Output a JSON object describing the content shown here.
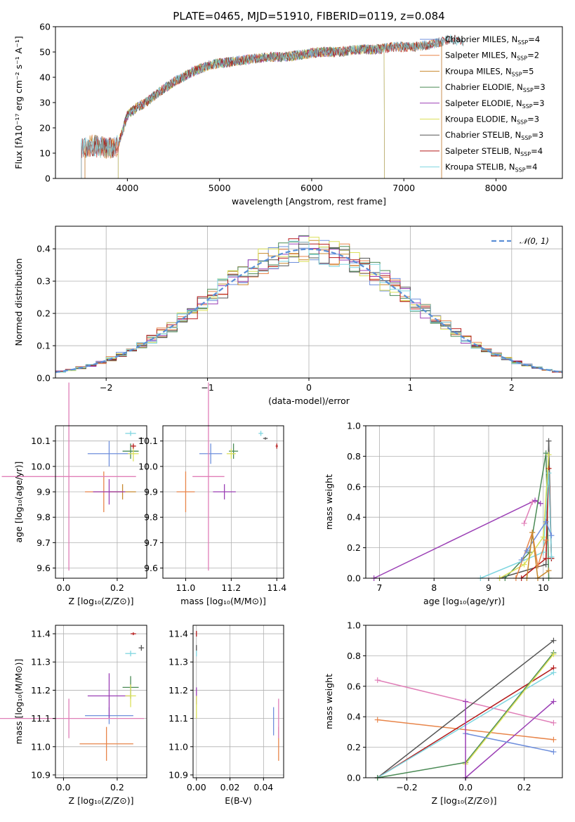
{
  "chart_data": [
    {
      "id": "spectrum",
      "type": "line",
      "title": "PLATE=0465, MJD=51910, FIBERID=0119, z=0.084",
      "xlabel": "wavelength [Angstrom, rest frame]",
      "ylabel": "Flux [fλ10⁻¹⁷ erg cm⁻² s⁻¹ A⁻¹]",
      "xlim": [
        3220,
        8720
      ],
      "ylim": [
        0,
        60
      ],
      "xticks": [
        4000,
        5000,
        6000,
        7000,
        8000
      ],
      "yticks": [
        0,
        10,
        20,
        30,
        40,
        50,
        60
      ],
      "grid": false,
      "legend_position": "right",
      "legend": [
        {
          "name": "Chabrier MILES",
          "nssp": "4",
          "color": "#6f8fdc"
        },
        {
          "name": "Salpeter MILES",
          "nssp": "2",
          "color": "#e8854a"
        },
        {
          "name": "Kroupa MILES",
          "nssp": "5",
          "color": "#c8892f"
        },
        {
          "name": "Chabrier ELODIE",
          "nssp": "3",
          "color": "#4a8a55"
        },
        {
          "name": "Salpeter ELODIE",
          "nssp": "3",
          "color": "#9b3fb5"
        },
        {
          "name": "Kroupa ELODIE",
          "nssp": "3",
          "color": "#dbe05a"
        },
        {
          "name": "Chabrier STELIB",
          "nssp": "3",
          "color": "#555555"
        },
        {
          "name": "Salpeter STELIB",
          "nssp": "4",
          "color": "#b51a1a"
        },
        {
          "name": "Kroupa STELIB",
          "nssp": "4",
          "color": "#7fd6e0"
        }
      ],
      "continuum": {
        "x": [
          3500,
          3600,
          3800,
          3900,
          4000,
          4100,
          4200,
          4300,
          4500,
          4700,
          4900,
          5100,
          5300,
          5500,
          5700,
          5900,
          6100,
          6300,
          6500,
          6700,
          6900,
          7100,
          7300,
          7500,
          7700
        ],
        "y": [
          12,
          13,
          12,
          13,
          25,
          28,
          30,
          33,
          38,
          42,
          45,
          46,
          47,
          48,
          48,
          49,
          50,
          50,
          51,
          51,
          52,
          52,
          53,
          55,
          54
        ]
      },
      "model_ranges": [
        {
          "series": "Chabrier MILES",
          "x": [
            3540,
            7410
          ]
        },
        {
          "series": "Salpeter MILES",
          "x": [
            3540,
            7410
          ]
        },
        {
          "series": "Kroupa MILES",
          "x": [
            3540,
            7410
          ]
        },
        {
          "series": "Chabrier ELODIE",
          "x": [
            3900,
            6790
          ]
        },
        {
          "series": "Salpeter ELODIE",
          "x": [
            3900,
            6790
          ]
        },
        {
          "series": "Kroupa ELODIE",
          "x": [
            3900,
            6790
          ]
        },
        {
          "series": "Chabrier STELIB",
          "x": [
            3500,
            8600
          ]
        },
        {
          "series": "Salpeter STELIB",
          "x": [
            3500,
            8600
          ]
        },
        {
          "series": "Kroupa STELIB",
          "x": [
            3500,
            8600
          ]
        }
      ]
    },
    {
      "id": "residuals",
      "type": "line",
      "xlabel": "(data-model)/error",
      "ylabel": "Normed distribution",
      "xlim": [
        -2.5,
        2.5
      ],
      "ylim": [
        0,
        0.47
      ],
      "xticks": [
        -2,
        -1,
        0,
        1,
        2
      ],
      "xticklabels": [
        "−2",
        "−1",
        "0",
        "1",
        "2"
      ],
      "yticks": [
        0,
        0.1,
        0.2,
        0.3,
        0.4
      ],
      "yticklabels": [
        "0.0",
        "0.1",
        "0.2",
        "0.3",
        "0.4"
      ],
      "grid": true,
      "legend_position": "top-right",
      "legend": [
        {
          "name": "𝒩(0, 1)",
          "style": "dashed",
          "color": "#5b8fd6"
        }
      ],
      "histogram": {
        "bin_width": 0.1,
        "x_range": [
          -2.5,
          2.5
        ],
        "count": 9
      }
    },
    {
      "id": "age_vs_Z",
      "type": "scatter",
      "xlabel": "Z [log₁₀(Z/Z⊙)]",
      "ylabel": "age  [log₁₀(age/yr)]",
      "xlim": [
        -0.03,
        0.31
      ],
      "ylim": [
        9.56,
        10.16
      ],
      "xticks": [
        0.0,
        0.2
      ],
      "xticklabels": [
        "0.0",
        "0.2"
      ],
      "yticks": [
        9.6,
        9.7,
        9.8,
        9.9,
        10.0,
        10.1
      ],
      "yticklabels": [
        "9.6",
        "9.7",
        "9.8",
        "9.9",
        "10.0",
        "10.1"
      ],
      "grid": true,
      "points": [
        {
          "series": "Chabrier MILES",
          "x": 0.17,
          "y": 10.05,
          "xerr": 0.08,
          "yerr": 0.05
        },
        {
          "series": "Salpeter MILES",
          "x": 0.15,
          "y": 9.9,
          "xerr": 0.07,
          "yerr": 0.08
        },
        {
          "series": "Kroupa MILES",
          "x": 0.22,
          "y": 9.9,
          "xerr": 0.05,
          "yerr": 0.03
        },
        {
          "series": "Chabrier ELODIE",
          "x": 0.25,
          "y": 10.06,
          "xerr": 0.03,
          "yerr": 0.03
        },
        {
          "series": "Salpeter ELODIE",
          "x": 0.17,
          "y": 9.9,
          "xerr": 0.06,
          "yerr": 0.05
        },
        {
          "series": "Kroupa ELODIE",
          "x": 0.26,
          "y": 10.05,
          "xerr": 0.02,
          "yerr": 0.03
        },
        {
          "series": "Chabrier STELIB",
          "x": 0.29,
          "y": 10.11,
          "xerr": 0.01,
          "yerr": 0.005
        },
        {
          "series": "Salpeter STELIB",
          "x": 0.26,
          "y": 10.08,
          "xerr": 0.01,
          "yerr": 0.01
        },
        {
          "series": "Kroupa STELIB",
          "x": 0.25,
          "y": 10.13,
          "xerr": 0.02,
          "yerr": 0.01
        },
        {
          "series": "pink",
          "x": 0.02,
          "y": 9.96,
          "xerr": 0.25,
          "yerr": 0.37
        }
      ]
    },
    {
      "id": "age_vs_mass",
      "type": "scatter",
      "xlabel": "mass [log₁₀(M/M⊙)]",
      "xlim": [
        10.9,
        11.43
      ],
      "ylim": [
        9.56,
        10.16
      ],
      "xticks": [
        11.0,
        11.2,
        11.4
      ],
      "xticklabels": [
        "11.0",
        "11.2",
        "11.4"
      ],
      "yticks": [
        9.6,
        9.7,
        9.8,
        9.9,
        10.0,
        10.1
      ],
      "yticklabels": [
        "9.6",
        "9.7",
        "9.8",
        "9.9",
        "10.0",
        "10.1"
      ],
      "grid": true,
      "points": [
        {
          "series": "Chabrier MILES",
          "x": 11.11,
          "y": 10.05,
          "xerr": 0.05,
          "yerr": 0.04
        },
        {
          "series": "Salpeter MILES",
          "x": 11.0,
          "y": 9.9,
          "xerr": 0.04,
          "yerr": 0.08
        },
        {
          "series": "Chabrier ELODIE",
          "x": 11.21,
          "y": 10.06,
          "xerr": 0.02,
          "yerr": 0.03
        },
        {
          "series": "Salpeter ELODIE",
          "x": 11.17,
          "y": 9.9,
          "xerr": 0.05,
          "yerr": 0.03
        },
        {
          "series": "Kroupa ELODIE",
          "x": 11.2,
          "y": 10.05,
          "xerr": 0.02,
          "yerr": 0.02
        },
        {
          "series": "Chabrier STELIB",
          "x": 11.35,
          "y": 10.11,
          "xerr": 0.01,
          "yerr": 0.005
        },
        {
          "series": "Salpeter STELIB",
          "x": 11.4,
          "y": 10.08,
          "xerr": 0.005,
          "yerr": 0.01
        },
        {
          "series": "Kroupa STELIB",
          "x": 11.33,
          "y": 10.13,
          "xerr": 0.01,
          "yerr": 0.01
        },
        {
          "series": "pink",
          "x": 11.1,
          "y": 9.96,
          "xerr": 0.07,
          "yerr": 0.37
        }
      ]
    },
    {
      "id": "mass_weight_vs_age",
      "type": "line",
      "xlabel": "age  [log₁₀(age/yr)]",
      "ylabel": "mass weight",
      "xlim": [
        6.75,
        10.35
      ],
      "ylim": [
        0,
        1.0
      ],
      "xticks": [
        7,
        8,
        9,
        10
      ],
      "yticks": [
        0,
        0.2,
        0.4,
        0.6,
        0.8,
        1.0
      ],
      "yticklabels": [
        "0.0",
        "0.2",
        "0.4",
        "0.6",
        "0.8",
        "1.0"
      ],
      "grid": true,
      "series": [
        {
          "name": "Salpeter ELODIE",
          "x": [
            6.9,
            9.85,
            9.95
          ],
          "y": [
            0.0,
            0.51,
            0.49
          ]
        },
        {
          "name": "Chabrier STELIB",
          "x": [
            9.2,
            10.05,
            10.1,
            10.15
          ],
          "y": [
            0.0,
            0.09,
            0.9,
            0.13
          ]
        },
        {
          "name": "Chabrier ELODIE",
          "x": [
            9.3,
            9.75,
            10.05,
            10.1
          ],
          "y": [
            0.0,
            0.17,
            0.82,
            0.0
          ]
        },
        {
          "name": "Salpeter STELIB",
          "x": [
            9.6,
            10.05,
            10.1,
            10.15
          ],
          "y": [
            0.0,
            0.13,
            0.72,
            0.13
          ]
        },
        {
          "name": "Kroupa STELIB",
          "x": [
            8.85,
            10.0,
            10.1,
            10.15
          ],
          "y": [
            0.0,
            0.17,
            0.69,
            0.14
          ]
        },
        {
          "name": "Kroupa ELODIE",
          "x": [
            9.2,
            9.65,
            10.0,
            10.1
          ],
          "y": [
            0.0,
            0.09,
            0.27,
            0.81
          ]
        },
        {
          "name": "Salpeter MILES",
          "x": [
            9.5,
            9.8,
            9.9,
            10.05
          ],
          "y": [
            0.0,
            0.3,
            0.08,
            0.25
          ]
        },
        {
          "name": "Chabrier MILES",
          "x": [
            9.6,
            9.7,
            10.05,
            10.15
          ],
          "y": [
            0.12,
            0.18,
            0.37,
            0.28
          ]
        },
        {
          "name": "Kroupa MILES",
          "x": [
            9.7,
            9.8,
            9.9,
            10.1
          ],
          "y": [
            0.0,
            0.3,
            0.0,
            0.05
          ]
        },
        {
          "name": "pink",
          "x": [
            9.65,
            9.8
          ],
          "y": [
            0.36,
            0.5
          ]
        }
      ]
    },
    {
      "id": "mass_vs_Z",
      "type": "scatter",
      "xlabel": "Z [log₁₀(Z/Z⊙)]",
      "ylabel": "mass [log₁₀(M/M⊙)]",
      "xlim": [
        -0.03,
        0.31
      ],
      "ylim": [
        10.89,
        11.43
      ],
      "xticks": [
        0.0,
        0.2
      ],
      "xticklabels": [
        "0.0",
        "0.2"
      ],
      "yticks": [
        10.9,
        11.0,
        11.1,
        11.2,
        11.3,
        11.4
      ],
      "yticklabels": [
        "10.9",
        "11.0",
        "11.1",
        "11.2",
        "11.3",
        "11.4"
      ],
      "grid": true,
      "points": [
        {
          "series": "Chabrier MILES",
          "x": 0.17,
          "y": 11.11,
          "xerr": 0.09,
          "yerr": 0.03
        },
        {
          "series": "Salpeter MILES",
          "x": 0.16,
          "y": 11.01,
          "xerr": 0.1,
          "yerr": 0.06
        },
        {
          "series": "Chabrier ELODIE",
          "x": 0.25,
          "y": 11.21,
          "xerr": 0.03,
          "yerr": 0.04
        },
        {
          "series": "Salpeter ELODIE",
          "x": 0.17,
          "y": 11.18,
          "xerr": 0.08,
          "yerr": 0.08
        },
        {
          "series": "Kroupa ELODIE",
          "x": 0.25,
          "y": 11.18,
          "xerr": 0.02,
          "yerr": 0.04
        },
        {
          "series": "Chabrier STELIB",
          "x": 0.29,
          "y": 11.35,
          "xerr": 0.01,
          "yerr": 0.01
        },
        {
          "series": "Salpeter STELIB",
          "x": 0.26,
          "y": 11.4,
          "xerr": 0.01,
          "yerr": 0.005
        },
        {
          "series": "Kroupa STELIB",
          "x": 0.25,
          "y": 11.33,
          "xerr": 0.02,
          "yerr": 0.01
        },
        {
          "series": "pink",
          "x": 0.02,
          "y": 11.1,
          "xerr": 0.28,
          "yerr": 0.07
        }
      ]
    },
    {
      "id": "mass_vs_ebv",
      "type": "scatter",
      "xlabel": "E(B-V)",
      "xlim": [
        -0.002,
        0.052
      ],
      "ylim": [
        10.89,
        11.43
      ],
      "xticks": [
        0.0,
        0.02,
        0.04
      ],
      "xticklabels": [
        "0.00",
        "0.02",
        "0.04"
      ],
      "yticks": [
        10.9,
        11.0,
        11.1,
        11.2,
        11.3,
        11.4
      ],
      "yticklabels": [
        "10.9",
        "11.0",
        "11.1",
        "11.2",
        "11.3",
        "11.4"
      ],
      "grid": true,
      "points": [
        {
          "series": "Chabrier MILES",
          "x": 0.046,
          "y": 11.09,
          "xerr": 0,
          "yerr": 0.05
        },
        {
          "series": "Salpeter MILES",
          "x": 0.049,
          "y": 11.01,
          "xerr": 0,
          "yerr": 0.06
        },
        {
          "series": "pink",
          "x": 0.049,
          "y": 11.1,
          "xerr": 0,
          "yerr": 0.07
        },
        {
          "series": "Salpeter ELODIE",
          "x": 0.0,
          "y": 11.18,
          "xerr": 0,
          "yerr": 0.03
        },
        {
          "series": "Kroupa ELODIE",
          "x": 0.0,
          "y": 11.14,
          "xerr": 0,
          "yerr": 0.04
        },
        {
          "series": "Chabrier STELIB",
          "x": 0.0,
          "y": 11.35,
          "xerr": 0,
          "yerr": 0.01
        },
        {
          "series": "Salpeter STELIB",
          "x": 0.0,
          "y": 11.4,
          "xerr": 0,
          "yerr": 0.01
        },
        {
          "series": "Kroupa STELIB",
          "x": 0.0,
          "y": 11.33,
          "xerr": 0,
          "yerr": 0.01
        }
      ]
    },
    {
      "id": "mass_weight_vs_Z",
      "type": "line",
      "xlabel": "Z [log₁₀(Z/Z⊙)]",
      "ylabel": "mass weight",
      "xlim": [
        -0.34,
        0.33
      ],
      "ylim": [
        0,
        1.0
      ],
      "xticks": [
        -0.2,
        0.0,
        0.2
      ],
      "xticklabels": [
        "−0.2",
        "0.0",
        "0.2"
      ],
      "yticks": [
        0,
        0.2,
        0.4,
        0.6,
        0.8,
        1.0
      ],
      "yticklabels": [
        "0.0",
        "0.2",
        "0.4",
        "0.6",
        "0.8",
        "1.0"
      ],
      "grid": true,
      "series": [
        {
          "name": "pink",
          "x": [
            -0.3,
            0.3
          ],
          "y": [
            0.64,
            0.36
          ]
        },
        {
          "name": "Salpeter MILES",
          "x": [
            -0.3,
            0.3
          ],
          "y": [
            0.38,
            0.25
          ]
        },
        {
          "name": "Chabrier STELIB",
          "x": [
            -0.3,
            0.3
          ],
          "y": [
            0.0,
            0.9
          ]
        },
        {
          "name": "Salpeter STELIB",
          "x": [
            -0.3,
            0.3
          ],
          "y": [
            0.0,
            0.72
          ]
        },
        {
          "name": "Kroupa STELIB",
          "x": [
            -0.3,
            0.3
          ],
          "y": [
            0.0,
            0.69
          ]
        },
        {
          "name": "Chabrier ELODIE",
          "x": [
            -0.3,
            0.0,
            0.3
          ],
          "y": [
            0.0,
            0.1,
            0.82
          ]
        },
        {
          "name": "Kroupa ELODIE",
          "x": [
            0.0,
            0.3
          ],
          "y": [
            0.09,
            0.81
          ]
        },
        {
          "name": "Salpeter ELODIE",
          "x": [
            0.0,
            0.3
          ],
          "y": [
            0.0,
            0.5
          ]
        },
        {
          "name": "Chabrier MILES",
          "x": [
            0.0,
            0.3
          ],
          "y": [
            0.29,
            0.17
          ]
        },
        {
          "name": "Salpeter ELODIE2",
          "x": [
            0.0,
            0.0
          ],
          "y": [
            0.0,
            0.5
          ]
        }
      ]
    }
  ]
}
